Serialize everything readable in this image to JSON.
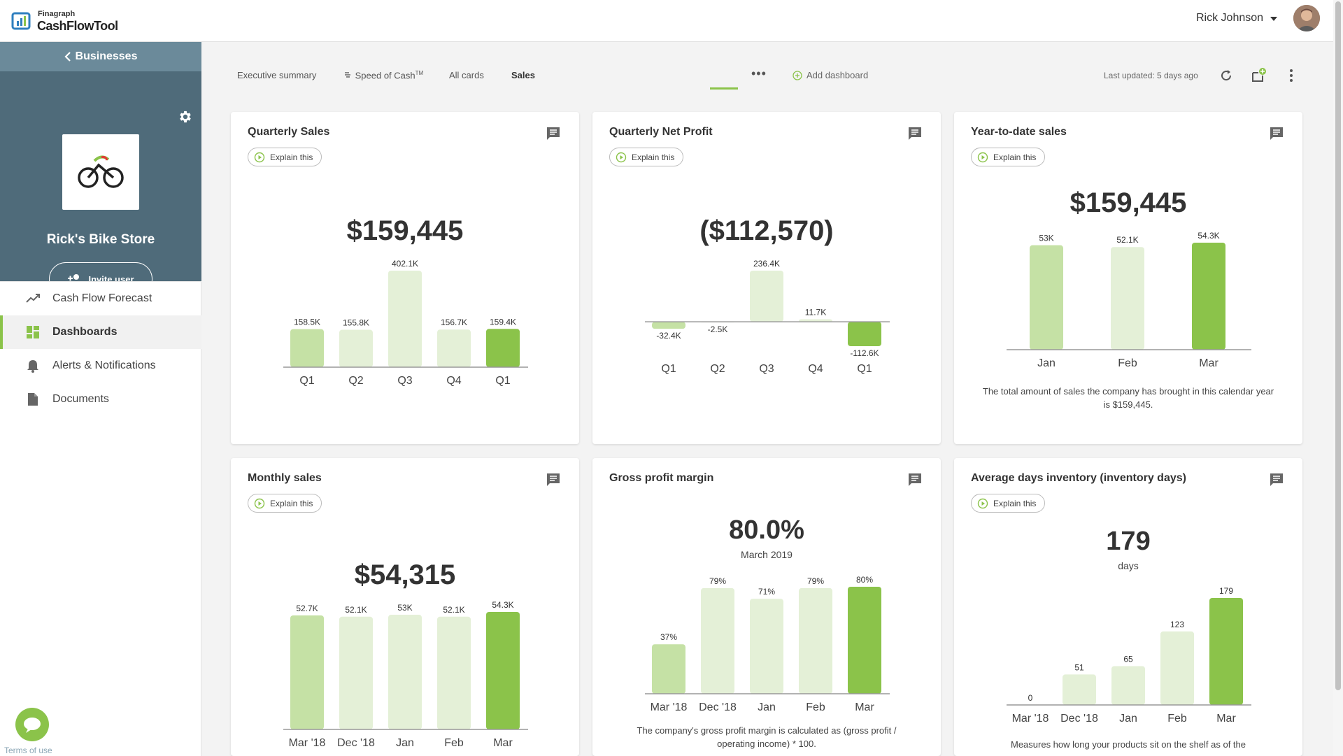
{
  "app": {
    "logo_small": "Finagraph",
    "logo_big": "CashFlowTool",
    "user_name": "Rick Johnson"
  },
  "sidebar": {
    "back_label": "Businesses",
    "store_name": "Rick's Bike Store",
    "invite_label": "Invite user",
    "items": [
      {
        "label": "Cash Flow Forecast",
        "icon": "trend-icon",
        "active": false
      },
      {
        "label": "Dashboards",
        "icon": "dashboard-icon",
        "active": true
      },
      {
        "label": "Alerts & Notifications",
        "icon": "bell-icon",
        "active": false
      },
      {
        "label": "Documents",
        "icon": "document-icon",
        "active": false
      }
    ],
    "terms": "Terms of use"
  },
  "tabs": {
    "items": [
      "Executive summary",
      "Speed of Cash",
      "All cards",
      "Sales"
    ],
    "tm": "TM",
    "active": "Sales",
    "add_dashboard": "Add dashboard",
    "last_updated": "Last updated: 5 days ago"
  },
  "colors": {
    "accent": "#8bc34a",
    "bar_light": "#c5e1a5",
    "bar_lighter": "#e4f0d7",
    "sidebar_dark": "#4f6b7a",
    "sidebar_header": "#6b8a9a"
  },
  "explain_label": "Explain this",
  "cards": [
    {
      "title": "Quarterly Sales",
      "explain": true,
      "value": "$159,445",
      "chart_data": {
        "type": "bar",
        "categories": [
          "Q1",
          "Q2",
          "Q3",
          "Q4",
          "Q1"
        ],
        "values": [
          158.5,
          155.8,
          402.1,
          156.7,
          159.4
        ],
        "labels": [
          "158.5K",
          "155.8K",
          "402.1K",
          "156.7K",
          "159.4K"
        ],
        "ylim": [
          0,
          402.1
        ]
      }
    },
    {
      "title": "Quarterly Net Profit",
      "explain": true,
      "value": "($112,570)",
      "chart_data": {
        "type": "bar",
        "categories": [
          "Q1",
          "Q2",
          "Q3",
          "Q4",
          "Q1"
        ],
        "values": [
          -32.4,
          -2.5,
          236.4,
          11.7,
          -112.6
        ],
        "labels": [
          "-32.4K",
          "-2.5K",
          "236.4K",
          "11.7K",
          "-112.6K"
        ],
        "ylim": [
          -112.6,
          236.4
        ]
      }
    },
    {
      "title": "Year-to-date sales",
      "explain": true,
      "value": "$159,445",
      "description": "The total amount of sales the company has brought in this calendar year is $159,445.",
      "chart_data": {
        "type": "bar",
        "categories": [
          "Jan",
          "Feb",
          "Mar"
        ],
        "values": [
          53,
          52.1,
          54.3
        ],
        "labels": [
          "53K",
          "52.1K",
          "54.3K"
        ],
        "ylim": [
          0,
          54.3
        ]
      }
    },
    {
      "title": "Monthly sales",
      "explain": true,
      "value": "$54,315",
      "chart_data": {
        "type": "bar",
        "categories": [
          "Mar '18",
          "Dec '18",
          "Jan",
          "Feb",
          "Mar"
        ],
        "values": [
          52.7,
          52.1,
          53,
          52.1,
          54.3
        ],
        "labels": [
          "52.7K",
          "52.1K",
          "53K",
          "52.1K",
          "54.3K"
        ],
        "ylim": [
          0,
          54.3
        ]
      }
    },
    {
      "title": "Gross profit margin",
      "explain": false,
      "value": "80.0%",
      "sub": "March 2019",
      "description": "The company's gross profit margin is calculated as (gross profit / operating income) * 100.",
      "chart_data": {
        "type": "bar",
        "categories": [
          "Mar '18",
          "Dec '18",
          "Jan",
          "Feb",
          "Mar"
        ],
        "values": [
          37,
          79,
          71,
          79,
          80
        ],
        "labels": [
          "37%",
          "79%",
          "71%",
          "79%",
          "80%"
        ],
        "ylim": [
          0,
          80
        ]
      }
    },
    {
      "title": "Average days inventory (inventory days)",
      "explain": true,
      "value": "179",
      "sub": "days",
      "description": "Measures how long your products sit on the shelf as of the",
      "chart_data": {
        "type": "bar",
        "categories": [
          "Mar '18",
          "Dec '18",
          "Jan",
          "Feb",
          "Mar"
        ],
        "values": [
          0,
          51,
          65,
          123,
          179
        ],
        "labels": [
          "0",
          "51",
          "65",
          "123",
          "179"
        ],
        "ylim": [
          0,
          179
        ]
      }
    }
  ]
}
